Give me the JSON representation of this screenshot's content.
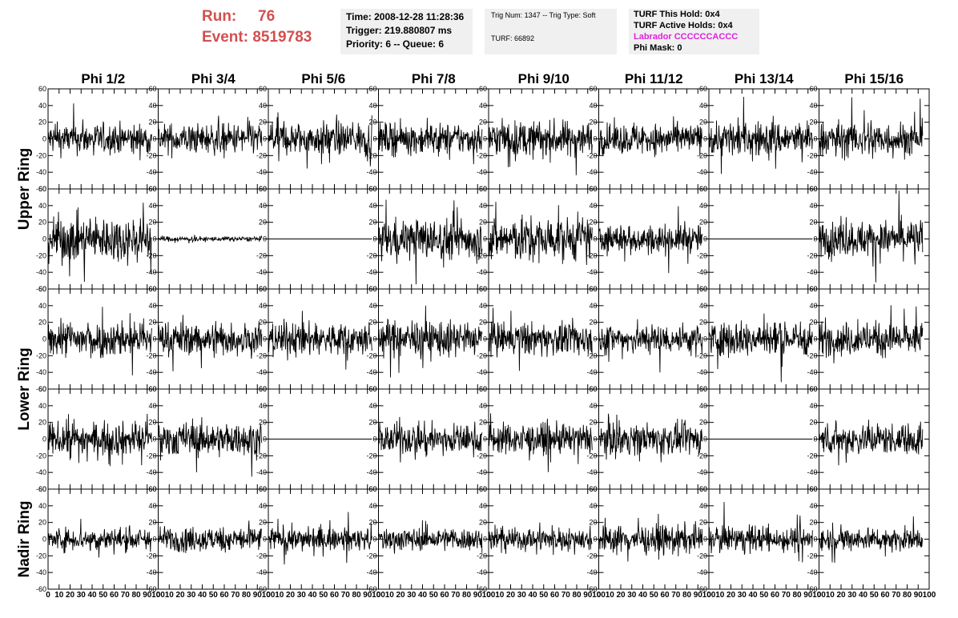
{
  "header": {
    "run_label": "Run:",
    "run_value": "76",
    "event_label": "Event:",
    "event_value": "8519783",
    "time": "Time: 2008-12-28 11:28:36",
    "trigger": "Trigger: 219.880807 ms",
    "priority": "Priority: 6 -- Queue: 6",
    "trig_num": "Trig Num: 1347 -- Trig Type: Soft",
    "turf": "TURF: 66892",
    "turf_this_hold": "TURF This Hold: 0x4",
    "turf_active_holds": "TURF Active Holds: 0x4",
    "labrador": "Labrador CCCCCCACCC",
    "phi_mask": "Phi Mask: 0",
    "accent_color": "#d24f4f",
    "labrador_color": "#e020e0"
  },
  "chart_data": {
    "type": "line",
    "columns": [
      "Phi 1/2",
      "Phi 3/4",
      "Phi 5/6",
      "Phi 7/8",
      "Phi 9/10",
      "Phi 11/12",
      "Phi 13/14",
      "Phi 15/16"
    ],
    "ring_labels": [
      "Upper Ring",
      "Lower Ring",
      "Nadir Ring"
    ],
    "rows": 5,
    "row_ring_groups": [
      [
        0,
        1
      ],
      [
        2,
        3
      ],
      [
        4
      ]
    ],
    "xlim": [
      0,
      100
    ],
    "ylim": [
      -60,
      60
    ],
    "x_ticks": [
      0,
      10,
      20,
      30,
      40,
      50,
      60,
      70,
      80,
      90,
      100
    ],
    "y_ticks": [
      -60,
      -40,
      -20,
      0,
      20,
      40,
      60
    ],
    "samples_per_trace": 260,
    "trace_x_range": [
      0,
      94
    ],
    "amplitudes": [
      [
        12,
        12,
        13,
        12,
        14,
        12,
        14,
        14
      ],
      [
        18,
        2,
        0,
        16,
        17,
        11,
        0,
        14
      ],
      [
        14,
        13,
        13,
        14,
        13,
        12,
        14,
        13
      ],
      [
        13,
        13,
        0,
        12,
        12,
        12,
        0,
        12
      ],
      [
        9,
        10,
        9,
        9,
        9,
        11,
        10,
        9
      ]
    ],
    "grid": false,
    "legend": "none"
  }
}
